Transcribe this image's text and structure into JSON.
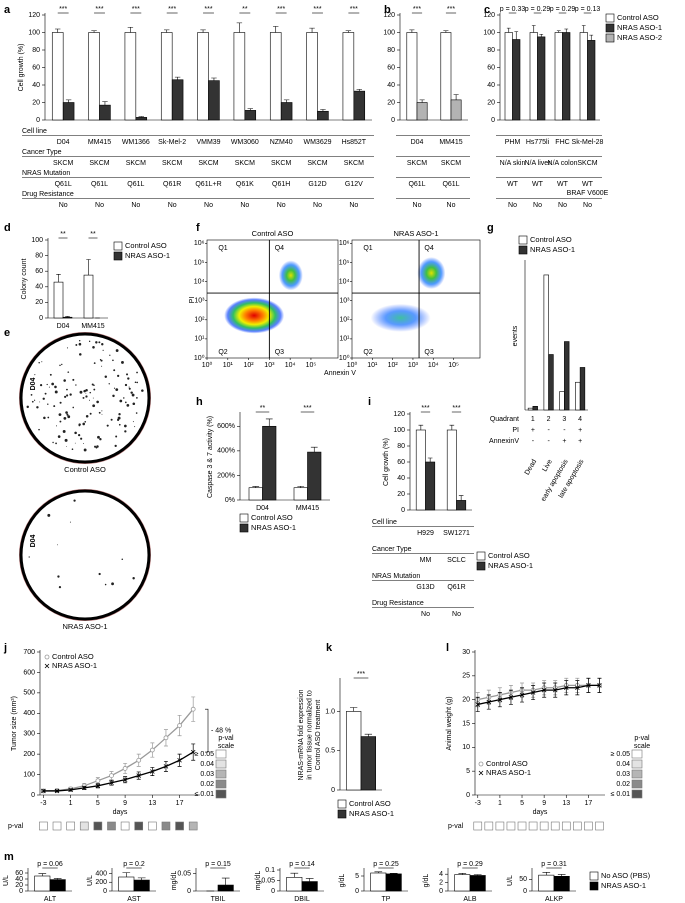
{
  "chart_data": [
    {
      "type": "bar",
      "panel": "a",
      "ylabel": "Cell growth (%)",
      "categories": [
        "D04",
        "MM415",
        "WM1366",
        "Sk-Mel-2",
        "VMM39",
        "WM3060",
        "NZM40",
        "WM3629",
        "Hs852T"
      ],
      "series": [
        {
          "color": "#ffffff",
          "values": [
            100,
            100,
            100,
            100,
            100,
            100,
            100,
            100,
            100
          ],
          "errors": [
            4,
            2,
            6,
            3,
            3,
            11,
            7,
            5,
            2
          ]
        },
        {
          "color": "#333333",
          "values": [
            20,
            17,
            3,
            46,
            45,
            11,
            20,
            10,
            33
          ],
          "errors": [
            3,
            4,
            1,
            3,
            3,
            2,
            3,
            2,
            2
          ]
        }
      ],
      "ylim": [
        0,
        120
      ],
      "yticks": [
        0,
        20,
        40,
        60,
        80,
        100,
        120
      ],
      "annotations": [
        "***",
        "***",
        "***",
        "***",
        "***",
        "**",
        "***",
        "***",
        "***"
      ],
      "row_labels": [
        "Cell line",
        "Cancer Type",
        "NRAS Mutation",
        "Drug Resistance"
      ],
      "rows": [
        [
          "SKCM",
          "SKCM",
          "SKCM",
          "SKCM",
          "SKCM",
          "SKCM",
          "SKCM",
          "SKCM",
          "SKCM"
        ],
        [
          "Q61L",
          "Q61L",
          "Q61L",
          "Q61R",
          "Q61L+R",
          "Q61K",
          "Q61H",
          "G12D",
          "G12V"
        ],
        [
          "No",
          "No",
          "No",
          "No",
          "No",
          "No",
          "No",
          "No",
          "No"
        ]
      ]
    },
    {
      "type": "bar",
      "panel": "b",
      "categories": [
        "D04",
        "MM415"
      ],
      "series": [
        {
          "color": "#ffffff",
          "values": [
            100,
            100
          ],
          "errors": [
            3,
            2
          ]
        },
        {
          "color": "#b3b3b3",
          "values": [
            20,
            23
          ],
          "errors": [
            3,
            6
          ]
        }
      ],
      "ylim": [
        0,
        120
      ],
      "yticks": [
        0,
        20,
        40,
        60,
        80,
        100,
        120
      ],
      "annotations": [
        "***",
        "***"
      ],
      "rows": [
        [
          "SKCM",
          "SKCM"
        ],
        [
          "Q61L",
          "Q61L"
        ],
        [
          "No",
          "No"
        ]
      ]
    },
    {
      "type": "bar",
      "panel": "c",
      "categories": [
        "PHM",
        "Hs775li",
        "FHC",
        "Sk-Mel-28"
      ],
      "series": [
        {
          "color": "#ffffff",
          "values": [
            100,
            100,
            100,
            100
          ],
          "errors": [
            5,
            8,
            2,
            8
          ]
        },
        {
          "color": "#333333",
          "values": [
            92,
            95,
            100,
            91
          ],
          "errors": [
            9,
            3,
            4,
            6
          ]
        }
      ],
      "ylim": [
        0,
        120
      ],
      "yticks": [
        0,
        20,
        40,
        60,
        80,
        100,
        120
      ],
      "annotations": [
        "p = 0.33",
        "p = 0.29",
        "p = 0.29",
        "p = 0.13"
      ],
      "rows": [
        [
          "N/A skin",
          "N/A liver",
          "N/A colon",
          "SKCM"
        ],
        [
          "WT",
          "WT",
          "WT",
          [
            "WT",
            "BRAF V600E"
          ]
        ],
        [
          "No",
          "No",
          "No",
          "No"
        ]
      ],
      "legend": [
        {
          "name": "Control ASO",
          "color": "#ffffff"
        },
        {
          "name": "NRAS ASO-1",
          "color": "#333333"
        },
        {
          "name": "NRAS ASO-2",
          "color": "#b3b3b3"
        }
      ]
    },
    {
      "type": "bar",
      "panel": "d",
      "ylabel": "Colony count",
      "categories": [
        "D04",
        "MM415"
      ],
      "series": [
        {
          "name": "Control ASO",
          "color": "#ffffff",
          "values": [
            46,
            55
          ],
          "errors": [
            10,
            20
          ]
        },
        {
          "name": "NRAS ASO-1",
          "color": "#333333",
          "values": [
            1,
            0
          ],
          "errors": [
            1,
            0
          ]
        }
      ],
      "ylim": [
        0,
        100
      ],
      "yticks": [
        0,
        20,
        40,
        60,
        80,
        100
      ],
      "annotations": [
        "**",
        "**"
      ]
    },
    {
      "type": "image",
      "panel": "e",
      "side_label": "D04",
      "captions": [
        "Control ASO",
        "NRAS ASO-1"
      ]
    },
    {
      "type": "flow",
      "panel": "f",
      "xlabel": "Annexin V",
      "ylabel": "PI",
      "log": true,
      "plots": [
        {
          "title": "Control ASO",
          "gate": [
            1000,
            2500
          ]
        },
        {
          "title": "NRAS ASO-1",
          "gate": [
            2000,
            2500
          ]
        }
      ],
      "quadrants": [
        "Q1",
        "Q4",
        "Q2",
        "Q3"
      ],
      "xlim": [
        1,
        2000000
      ],
      "ylim": [
        1,
        1500000
      ],
      "xticks": [
        {
          "value": 1,
          "label": "10⁰"
        },
        {
          "value": 10,
          "label": "10¹"
        },
        {
          "value": 100,
          "label": "10²"
        },
        {
          "value": 1000,
          "label": "10³"
        },
        {
          "value": 10000,
          "label": "10⁴"
        },
        {
          "value": 100000,
          "label": "10⁵"
        }
      ],
      "yticks": [
        {
          "value": 1,
          "label": "10⁰"
        },
        {
          "value": 10,
          "label": "10¹"
        },
        {
          "value": 100,
          "label": "10²"
        },
        {
          "value": 1000,
          "label": "10³"
        },
        {
          "value": 10000,
          "label": "10⁴"
        },
        {
          "value": 100000,
          "label": "10⁵"
        },
        {
          "value": 1000000,
          "label": "10⁶"
        }
      ]
    },
    {
      "type": "bar",
      "panel": "g",
      "ylabel": "events",
      "categories": [
        "Dead",
        "Live",
        "early apoptosis",
        "late apoptosis"
      ],
      "series": [
        {
          "name": "Control ASO",
          "color": "#ffffff",
          "values": [
            1,
            73,
            10,
            15
          ]
        },
        {
          "name": "NRAS ASO-1",
          "color": "#333333",
          "values": [
            2,
            30,
            37,
            23
          ]
        }
      ],
      "ylim": [
        0,
        80
      ],
      "row_labels": [
        "Quadrant",
        "PI",
        "AnnexinV"
      ],
      "rows": [
        [
          1,
          2,
          3,
          4
        ],
        [
          "+",
          "-",
          "-",
          "+"
        ],
        [
          "-",
          "-",
          "+",
          "+"
        ]
      ]
    },
    {
      "type": "bar",
      "panel": "h",
      "ylabel": "Caspase 3 & 7 activity (%)",
      "categories": [
        "D04",
        "MM415"
      ],
      "series": [
        {
          "name": "Control ASO",
          "color": "#ffffff",
          "values": [
            100,
            100
          ],
          "errors": [
            10,
            12
          ]
        },
        {
          "name": "NRAS ASO-1",
          "color": "#333333",
          "values": [
            600,
            390
          ],
          "errors": [
            60,
            40
          ]
        }
      ],
      "ylim": [
        0,
        700
      ],
      "yticks": [
        {
          "value": 0,
          "label": "0%"
        },
        {
          "value": 200,
          "label": "200%"
        },
        {
          "value": 400,
          "label": "400%"
        },
        {
          "value": 600,
          "label": "600%"
        }
      ],
      "annotations": [
        "**",
        "***"
      ]
    },
    {
      "type": "bar",
      "panel": "i",
      "ylabel": "Cell growth (%)",
      "categories": [
        "H929",
        "SW1271"
      ],
      "series": [
        {
          "name": "Control ASO",
          "color": "#ffffff",
          "values": [
            100,
            100
          ],
          "errors": [
            6,
            6
          ]
        },
        {
          "name": "NRAS ASO-1",
          "color": "#333333",
          "values": [
            60,
            12
          ],
          "errors": [
            5,
            6
          ]
        }
      ],
      "ylim": [
        0,
        120
      ],
      "yticks": [
        0,
        20,
        40,
        60,
        80,
        100,
        120
      ],
      "annotations": [
        "***",
        "***"
      ],
      "row_labels": [
        "Cell line",
        "Cancer Type",
        "NRAS Mutation",
        "Drug Resistance"
      ],
      "rows": [
        [
          "MM",
          "SCLC"
        ],
        [
          "G13D",
          "Q61R"
        ],
        [
          "No",
          "No"
        ]
      ]
    },
    {
      "type": "line",
      "panel": "j",
      "ylabel": "Tumor size (mm³)",
      "xlabel": "days",
      "x": [
        -3,
        -1,
        1,
        3,
        5,
        7,
        9,
        11,
        13,
        15,
        17,
        19
      ],
      "xlim": [
        -3.5,
        20
      ],
      "xticks": [
        -3,
        1,
        5,
        9,
        13,
        17
      ],
      "ylim": [
        0,
        700
      ],
      "yticks": [
        0,
        100,
        200,
        300,
        400,
        500,
        600,
        700
      ],
      "series": [
        {
          "name": "Control ASO",
          "color": "#999999",
          "marker": "o",
          "values": [
            20,
            22,
            30,
            45,
            70,
            95,
            130,
            170,
            220,
            280,
            340,
            420
          ],
          "errors": [
            5,
            5,
            8,
            12,
            15,
            20,
            25,
            30,
            35,
            40,
            50,
            60
          ]
        },
        {
          "name": "NRAS ASO-1",
          "color": "#000000",
          "marker": "x",
          "values": [
            20,
            20,
            25,
            35,
            45,
            60,
            75,
            95,
            115,
            140,
            170,
            210
          ],
          "errors": [
            5,
            5,
            6,
            8,
            10,
            12,
            15,
            18,
            20,
            25,
            30,
            40
          ]
        }
      ],
      "annotation": "- 48 %",
      "pval_label": "p-val",
      "pvalues": [
        0.5,
        0.5,
        0.5,
        0.04,
        0.01,
        0.02,
        0.5,
        0.01,
        0.5,
        0.02,
        0.01,
        0.03
      ],
      "pval_scale_title": [
        "p-val",
        "scale"
      ],
      "pval_scale": [
        {
          "value": 0.05,
          "label": "≥ 0.05"
        },
        0.04,
        0.03,
        0.02,
        {
          "value": 0.01,
          "label": "≤ 0.01"
        }
      ],
      "pval_colors": [
        "#ffffff",
        "#e3e3e3",
        "#b5b5b5",
        "#8a8a8a",
        "#555555"
      ]
    },
    {
      "type": "bar",
      "panel": "k",
      "ylabel": [
        "NRAS-mRNA fold expression",
        "in tumor tissue normalized to",
        "Control ASO treatment"
      ],
      "series": [
        {
          "name": "Control ASO",
          "color": "#ffffff",
          "values": [
            1.0
          ],
          "errors": [
            0.05
          ]
        },
        {
          "name": "NRAS ASO-1",
          "color": "#333333",
          "values": [
            0.68
          ],
          "errors": [
            0.03
          ]
        }
      ],
      "ylim": [
        0,
        1.4
      ],
      "yticks": [
        0,
        0.5,
        {
          "value": 1,
          "label": "1.0"
        }
      ],
      "annotations": [
        "***"
      ]
    },
    {
      "type": "line",
      "panel": "l",
      "ylabel": "Animal weight (g)",
      "xlabel": "days",
      "x": [
        -3,
        -1,
        1,
        3,
        5,
        7,
        9,
        11,
        13,
        15,
        17,
        19
      ],
      "xlim": [
        -3.5,
        20
      ],
      "xticks": [
        -3,
        1,
        5,
        9,
        13,
        17
      ],
      "ylim": [
        0,
        30
      ],
      "yticks": [
        0,
        5,
        10,
        15,
        20,
        25,
        30
      ],
      "series": [
        {
          "name": "Control ASO",
          "color": "#999999",
          "marker": "o",
          "values": [
            20,
            20.5,
            21,
            21.5,
            22,
            22,
            22.5,
            22.5,
            23,
            23,
            23,
            23
          ],
          "errors": [
            1.5,
            1.5,
            1.5,
            1.5,
            1.5,
            1.5,
            1.5,
            1.5,
            1.5,
            1.5,
            1.5,
            1.5
          ]
        },
        {
          "name": "NRAS ASO-1",
          "color": "#000000",
          "marker": "x",
          "values": [
            19,
            19.5,
            20,
            20.5,
            21,
            21.5,
            22,
            22,
            22.5,
            22.5,
            23,
            23
          ],
          "errors": [
            1.5,
            1.5,
            1.5,
            1.5,
            1.5,
            1.5,
            1.5,
            1.5,
            1.5,
            1.5,
            1.5,
            1.5
          ]
        }
      ],
      "pval_label": "p-val",
      "pvalues": [
        0.5,
        0.5,
        0.5,
        0.5,
        0.5,
        0.5,
        0.5,
        0.5,
        0.5,
        0.5,
        0.5,
        0.5
      ],
      "pval_scale_title": [
        "p-val",
        "scale"
      ],
      "pval_scale": [
        {
          "value": 0.05,
          "label": "≥ 0.05"
        },
        0.04,
        0.03,
        0.02,
        {
          "value": 0.01,
          "label": "≤ 0.01"
        }
      ],
      "pval_colors": [
        "#ffffff",
        "#e3e3e3",
        "#b5b5b5",
        "#8a8a8a",
        "#555555"
      ]
    },
    {
      "type": "bar",
      "panel": "m",
      "ylabel": "U/L",
      "xlabel": "ALT",
      "series": [
        {
          "color": "#ffffff",
          "values": [
            50
          ],
          "errors": [
            8
          ]
        },
        {
          "color": "#000000",
          "values": [
            38
          ],
          "errors": [
            4
          ]
        }
      ],
      "ylim": [
        0,
        70
      ],
      "yticks": [
        0,
        20,
        40,
        60
      ],
      "annotations": [
        "p = 0.06"
      ]
    },
    {
      "type": "bar",
      "ylabel": "U/L",
      "xlabel": "AST",
      "series": [
        {
          "color": "#ffffff",
          "values": [
            320
          ],
          "errors": [
            100
          ]
        },
        {
          "color": "#000000",
          "values": [
            250
          ],
          "errors": [
            50
          ]
        }
      ],
      "ylim": [
        0,
        480
      ],
      "yticks": [
        0,
        200,
        400
      ],
      "annotations": [
        "p = 0.2"
      ]
    },
    {
      "type": "bar",
      "ylabel": "mg/dL",
      "xlabel": "TBIL",
      "series": [
        {
          "color": "#ffffff",
          "values": [
            0
          ],
          "errors": [
            0
          ]
        },
        {
          "color": "#000000",
          "values": [
            0.017
          ],
          "errors": [
            0.02
          ]
        }
      ],
      "ylim": [
        0,
        0.06
      ],
      "yticks": [
        0,
        0.05
      ],
      "annotations": [
        "p = 0.15"
      ]
    },
    {
      "type": "bar",
      "ylabel": "mg/dL",
      "xlabel": "DBIL",
      "series": [
        {
          "color": "#ffffff",
          "values": [
            0.065
          ],
          "errors": [
            0.02
          ]
        },
        {
          "color": "#000000",
          "values": [
            0.045
          ],
          "errors": [
            0.015
          ]
        }
      ],
      "ylim": [
        0,
        0.1
      ],
      "yticks": [
        0,
        0.05,
        0.1
      ],
      "annotations": [
        "p = 0.14"
      ]
    },
    {
      "type": "bar",
      "ylabel": "g/dL",
      "xlabel": "TP",
      "series": [
        {
          "color": "#ffffff",
          "values": [
            6.0
          ],
          "errors": [
            0.4
          ]
        },
        {
          "color": "#000000",
          "values": [
            5.7
          ],
          "errors": [
            0.2
          ]
        }
      ],
      "ylim": [
        0,
        7
      ],
      "yticks": [
        0,
        5
      ],
      "annotations": [
        "p = 0.25"
      ]
    },
    {
      "type": "bar",
      "ylabel": "g/dL",
      "xlabel": "ALB",
      "series": [
        {
          "color": "#ffffff",
          "values": [
            3.9
          ],
          "errors": [
            0.3
          ]
        },
        {
          "color": "#000000",
          "values": [
            3.7
          ],
          "errors": [
            0.2
          ]
        }
      ],
      "ylim": [
        0,
        5
      ],
      "yticks": [
        0,
        2,
        4
      ],
      "annotations": [
        "p = 0.29"
      ]
    },
    {
      "type": "bar",
      "ylabel": "U/L",
      "xlabel": "ALKP",
      "series": [
        {
          "name": "No ASO (PBS)",
          "color": "#ffffff",
          "values": [
            68
          ],
          "errors": [
            12
          ]
        },
        {
          "name": "NRAS ASO-1",
          "color": "#000000",
          "values": [
            63
          ],
          "errors": [
            8
          ]
        }
      ],
      "ylim": [
        0,
        90
      ],
      "yticks": [
        0,
        50
      ],
      "annotations": [
        "p = 0.31"
      ]
    }
  ]
}
